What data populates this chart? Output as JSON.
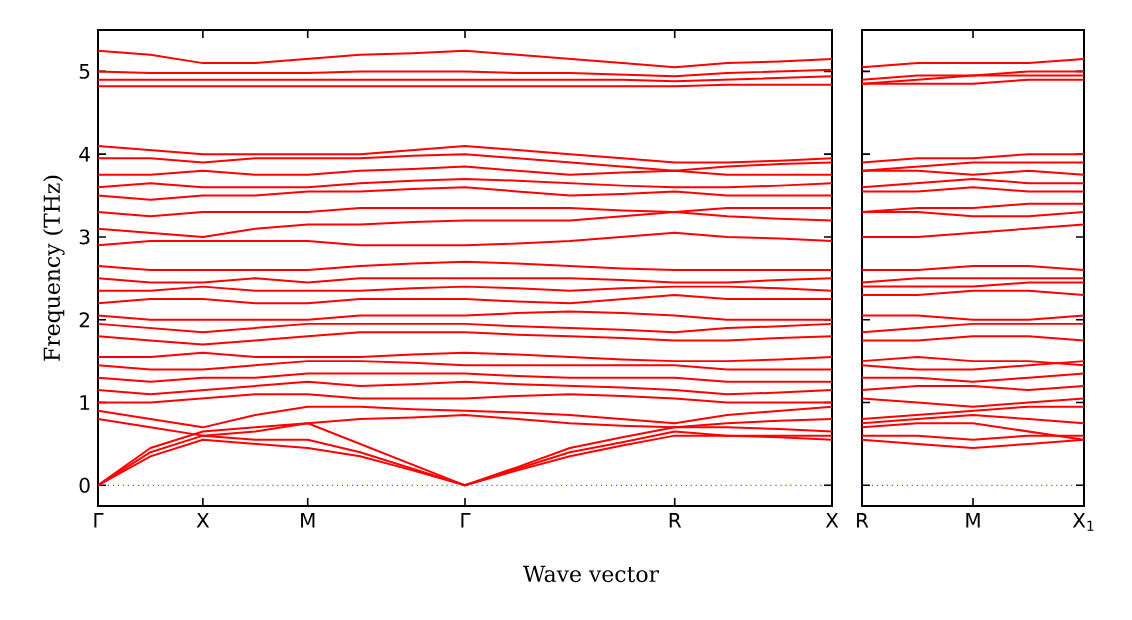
{
  "chart_data": [
    {
      "type": "line",
      "xlabel": "Wave vector",
      "ylabel": "Frequency (THz)",
      "marker": "none",
      "line_style": "solid",
      "categories": [
        "Γ",
        null,
        "X",
        null,
        "M",
        null,
        null,
        "Γ",
        null,
        null,
        null,
        "R",
        null,
        null,
        "X"
      ],
      "ylim": [
        -0.25,
        5.5
      ],
      "yticks": [
        0,
        1,
        2,
        3,
        4,
        5
      ],
      "ref_lines": [
        {
          "axis": "y",
          "value": 0,
          "color": "#0000ff",
          "line_style": "dotted"
        }
      ],
      "series": [
        {
          "color": "#ff0000",
          "values": [
            0,
            0.35,
            0.55,
            0.5,
            0.45,
            0.35,
            0.18,
            0,
            0.18,
            0.35,
            0.48,
            0.6,
            0.6,
            0.58,
            0.55
          ]
        },
        {
          "color": "#ff0000",
          "values": [
            0,
            0.4,
            0.6,
            0.55,
            0.55,
            0.4,
            0.2,
            0,
            0.2,
            0.4,
            0.52,
            0.65,
            0.6,
            0.6,
            0.6
          ]
        },
        {
          "color": "#ff0000",
          "values": [
            0,
            0.45,
            0.65,
            0.7,
            0.75,
            0.5,
            0.25,
            0,
            0.22,
            0.45,
            0.58,
            0.7,
            0.7,
            0.68,
            0.65
          ]
        },
        {
          "color": "#ff0000",
          "values": [
            0.8,
            0.7,
            0.6,
            0.65,
            0.75,
            0.8,
            0.82,
            0.85,
            0.8,
            0.75,
            0.72,
            0.7,
            0.75,
            0.78,
            0.8
          ]
        },
        {
          "color": "#ff0000",
          "values": [
            0.9,
            0.8,
            0.7,
            0.85,
            0.95,
            0.95,
            0.92,
            0.9,
            0.88,
            0.85,
            0.8,
            0.75,
            0.85,
            0.9,
            0.95
          ]
        },
        {
          "color": "#ff0000",
          "values": [
            1.0,
            1.0,
            1.05,
            1.1,
            1.1,
            1.05,
            1.05,
            1.05,
            1.08,
            1.1,
            1.08,
            1.05,
            1.0,
            1.0,
            1.0
          ]
        },
        {
          "color": "#ff0000",
          "values": [
            1.15,
            1.1,
            1.15,
            1.2,
            1.25,
            1.2,
            1.22,
            1.25,
            1.22,
            1.2,
            1.18,
            1.15,
            1.1,
            1.12,
            1.15
          ]
        },
        {
          "color": "#ff0000",
          "values": [
            1.3,
            1.25,
            1.3,
            1.3,
            1.35,
            1.35,
            1.35,
            1.35,
            1.32,
            1.3,
            1.3,
            1.3,
            1.25,
            1.25,
            1.25
          ]
        },
        {
          "color": "#ff0000",
          "values": [
            1.45,
            1.4,
            1.4,
            1.45,
            1.5,
            1.5,
            1.48,
            1.45,
            1.45,
            1.45,
            1.45,
            1.45,
            1.4,
            1.4,
            1.4
          ]
        },
        {
          "color": "#ff0000",
          "values": [
            1.55,
            1.55,
            1.6,
            1.55,
            1.55,
            1.55,
            1.58,
            1.6,
            1.58,
            1.55,
            1.52,
            1.5,
            1.5,
            1.52,
            1.55
          ]
        },
        {
          "color": "#ff0000",
          "values": [
            1.8,
            1.75,
            1.7,
            1.75,
            1.8,
            1.85,
            1.85,
            1.85,
            1.82,
            1.8,
            1.78,
            1.75,
            1.75,
            1.78,
            1.8
          ]
        },
        {
          "color": "#ff0000",
          "values": [
            1.95,
            1.9,
            1.85,
            1.9,
            1.95,
            1.95,
            1.95,
            1.95,
            1.92,
            1.9,
            1.88,
            1.85,
            1.9,
            1.92,
            1.95
          ]
        },
        {
          "color": "#ff0000",
          "values": [
            2.05,
            2.0,
            2.0,
            2.0,
            2.0,
            2.05,
            2.05,
            2.05,
            2.08,
            2.1,
            2.08,
            2.05,
            2.0,
            2.0,
            2.0
          ]
        },
        {
          "color": "#ff0000",
          "values": [
            2.2,
            2.25,
            2.25,
            2.2,
            2.2,
            2.25,
            2.25,
            2.25,
            2.22,
            2.2,
            2.25,
            2.3,
            2.25,
            2.25,
            2.25
          ]
        },
        {
          "color": "#ff0000",
          "values": [
            2.35,
            2.35,
            2.4,
            2.35,
            2.35,
            2.35,
            2.38,
            2.4,
            2.38,
            2.35,
            2.38,
            2.4,
            2.4,
            2.38,
            2.35
          ]
        },
        {
          "color": "#ff0000",
          "values": [
            2.5,
            2.45,
            2.45,
            2.5,
            2.45,
            2.5,
            2.5,
            2.5,
            2.5,
            2.5,
            2.48,
            2.45,
            2.45,
            2.48,
            2.5
          ]
        },
        {
          "color": "#ff0000",
          "values": [
            2.65,
            2.6,
            2.6,
            2.6,
            2.6,
            2.65,
            2.68,
            2.7,
            2.68,
            2.65,
            2.62,
            2.6,
            2.6,
            2.6,
            2.6
          ]
        },
        {
          "color": "#ff0000",
          "values": [
            2.9,
            2.95,
            2.95,
            2.95,
            2.95,
            2.9,
            2.9,
            2.9,
            2.92,
            2.95,
            3.0,
            3.05,
            3.0,
            2.98,
            2.95
          ]
        },
        {
          "color": "#ff0000",
          "values": [
            3.1,
            3.05,
            3.0,
            3.1,
            3.15,
            3.15,
            3.18,
            3.2,
            3.2,
            3.2,
            3.25,
            3.3,
            3.25,
            3.22,
            3.2
          ]
        },
        {
          "color": "#ff0000",
          "values": [
            3.3,
            3.25,
            3.3,
            3.3,
            3.3,
            3.35,
            3.35,
            3.35,
            3.35,
            3.35,
            3.32,
            3.3,
            3.35,
            3.35,
            3.35
          ]
        },
        {
          "color": "#ff0000",
          "values": [
            3.5,
            3.45,
            3.5,
            3.5,
            3.55,
            3.55,
            3.58,
            3.6,
            3.55,
            3.5,
            3.52,
            3.55,
            3.5,
            3.5,
            3.5
          ]
        },
        {
          "color": "#ff0000",
          "values": [
            3.6,
            3.65,
            3.6,
            3.6,
            3.6,
            3.65,
            3.68,
            3.7,
            3.68,
            3.65,
            3.62,
            3.6,
            3.6,
            3.62,
            3.65
          ]
        },
        {
          "color": "#ff0000",
          "values": [
            3.75,
            3.75,
            3.8,
            3.75,
            3.75,
            3.8,
            3.82,
            3.85,
            3.8,
            3.75,
            3.78,
            3.8,
            3.75,
            3.75,
            3.75
          ]
        },
        {
          "color": "#ff0000",
          "values": [
            3.95,
            3.95,
            3.9,
            3.95,
            3.95,
            3.95,
            3.98,
            4.0,
            3.95,
            3.9,
            3.85,
            3.8,
            3.85,
            3.88,
            3.9
          ]
        },
        {
          "color": "#ff0000",
          "values": [
            4.1,
            4.05,
            4.0,
            4.0,
            4.0,
            4.0,
            4.05,
            4.1,
            4.05,
            4.0,
            3.95,
            3.9,
            3.9,
            3.92,
            3.95
          ]
        },
        {
          "color": "#ff0000",
          "values": [
            4.82,
            4.82,
            4.82,
            4.82,
            4.82,
            4.82,
            4.82,
            4.82,
            4.82,
            4.82,
            4.82,
            4.82,
            4.84,
            4.84,
            4.84
          ]
        },
        {
          "color": "#ff0000",
          "values": [
            4.9,
            4.9,
            4.9,
            4.9,
            4.9,
            4.9,
            4.9,
            4.9,
            4.9,
            4.9,
            4.9,
            4.88,
            4.9,
            4.92,
            4.94
          ]
        },
        {
          "color": "#ff0000",
          "values": [
            5.0,
            4.98,
            4.98,
            4.98,
            4.98,
            5.0,
            5.0,
            5.0,
            4.98,
            4.98,
            4.96,
            4.94,
            4.98,
            5.0,
            5.02
          ]
        },
        {
          "color": "#ff0000",
          "values": [
            5.25,
            5.2,
            5.1,
            5.1,
            5.15,
            5.2,
            5.22,
            5.25,
            5.2,
            5.15,
            5.1,
            5.05,
            5.1,
            5.12,
            5.15
          ]
        }
      ]
    },
    {
      "type": "line",
      "marker": "none",
      "line_style": "solid",
      "tick_labels": "x",
      "categories": [
        "R",
        null,
        "M",
        null,
        "X$_{1}$"
      ],
      "ylim": [
        -0.25,
        5.5
      ],
      "yticks": [
        0,
        1,
        2,
        3,
        4,
        5
      ],
      "ref_lines": [
        {
          "axis": "y",
          "value": 0,
          "color": "#0000ff",
          "line_style": "dotted"
        }
      ],
      "series": [
        {
          "color": "#ff0000",
          "values": [
            0.55,
            0.5,
            0.45,
            0.5,
            0.55
          ]
        },
        {
          "color": "#ff0000",
          "values": [
            0.6,
            0.6,
            0.55,
            0.6,
            0.6
          ]
        },
        {
          "color": "#ff0000",
          "values": [
            0.7,
            0.75,
            0.75,
            0.65,
            0.55
          ]
        },
        {
          "color": "#ff0000",
          "values": [
            0.75,
            0.8,
            0.85,
            0.8,
            0.75
          ]
        },
        {
          "color": "#ff0000",
          "values": [
            0.8,
            0.85,
            0.9,
            0.95,
            0.95
          ]
        },
        {
          "color": "#ff0000",
          "values": [
            1.05,
            1.0,
            0.95,
            1.0,
            1.05
          ]
        },
        {
          "color": "#ff0000",
          "values": [
            1.15,
            1.2,
            1.2,
            1.15,
            1.2
          ]
        },
        {
          "color": "#ff0000",
          "values": [
            1.3,
            1.3,
            1.25,
            1.3,
            1.35
          ]
        },
        {
          "color": "#ff0000",
          "values": [
            1.45,
            1.4,
            1.4,
            1.45,
            1.5
          ]
        },
        {
          "color": "#ff0000",
          "values": [
            1.5,
            1.55,
            1.5,
            1.5,
            1.45
          ]
        },
        {
          "color": "#ff0000",
          "values": [
            1.75,
            1.75,
            1.8,
            1.8,
            1.75
          ]
        },
        {
          "color": "#ff0000",
          "values": [
            1.85,
            1.9,
            1.95,
            1.95,
            1.95
          ]
        },
        {
          "color": "#ff0000",
          "values": [
            2.05,
            2.05,
            2.0,
            2.0,
            2.05
          ]
        },
        {
          "color": "#ff0000",
          "values": [
            2.3,
            2.3,
            2.35,
            2.35,
            2.3
          ]
        },
        {
          "color": "#ff0000",
          "values": [
            2.4,
            2.4,
            2.4,
            2.45,
            2.45
          ]
        },
        {
          "color": "#ff0000",
          "values": [
            2.45,
            2.5,
            2.5,
            2.5,
            2.5
          ]
        },
        {
          "color": "#ff0000",
          "values": [
            2.6,
            2.6,
            2.65,
            2.65,
            2.6
          ]
        },
        {
          "color": "#ff0000",
          "values": [
            3.0,
            3.0,
            3.05,
            3.1,
            3.15
          ]
        },
        {
          "color": "#ff0000",
          "values": [
            3.3,
            3.3,
            3.25,
            3.25,
            3.3
          ]
        },
        {
          "color": "#ff0000",
          "values": [
            3.3,
            3.35,
            3.35,
            3.4,
            3.4
          ]
        },
        {
          "color": "#ff0000",
          "values": [
            3.55,
            3.55,
            3.6,
            3.55,
            3.55
          ]
        },
        {
          "color": "#ff0000",
          "values": [
            3.6,
            3.65,
            3.7,
            3.65,
            3.65
          ]
        },
        {
          "color": "#ff0000",
          "values": [
            3.8,
            3.8,
            3.75,
            3.8,
            3.75
          ]
        },
        {
          "color": "#ff0000",
          "values": [
            3.8,
            3.85,
            3.9,
            3.9,
            3.9
          ]
        },
        {
          "color": "#ff0000",
          "values": [
            3.9,
            3.95,
            3.95,
            4.0,
            4.0
          ]
        },
        {
          "color": "#ff0000",
          "values": [
            4.85,
            4.85,
            4.85,
            4.9,
            4.9
          ]
        },
        {
          "color": "#ff0000",
          "values": [
            4.85,
            4.9,
            4.95,
            4.95,
            4.95
          ]
        },
        {
          "color": "#ff0000",
          "values": [
            4.9,
            4.95,
            4.95,
            5.0,
            5.0
          ]
        },
        {
          "color": "#ff0000",
          "values": [
            5.05,
            5.1,
            5.1,
            5.1,
            5.15
          ]
        }
      ]
    }
  ]
}
